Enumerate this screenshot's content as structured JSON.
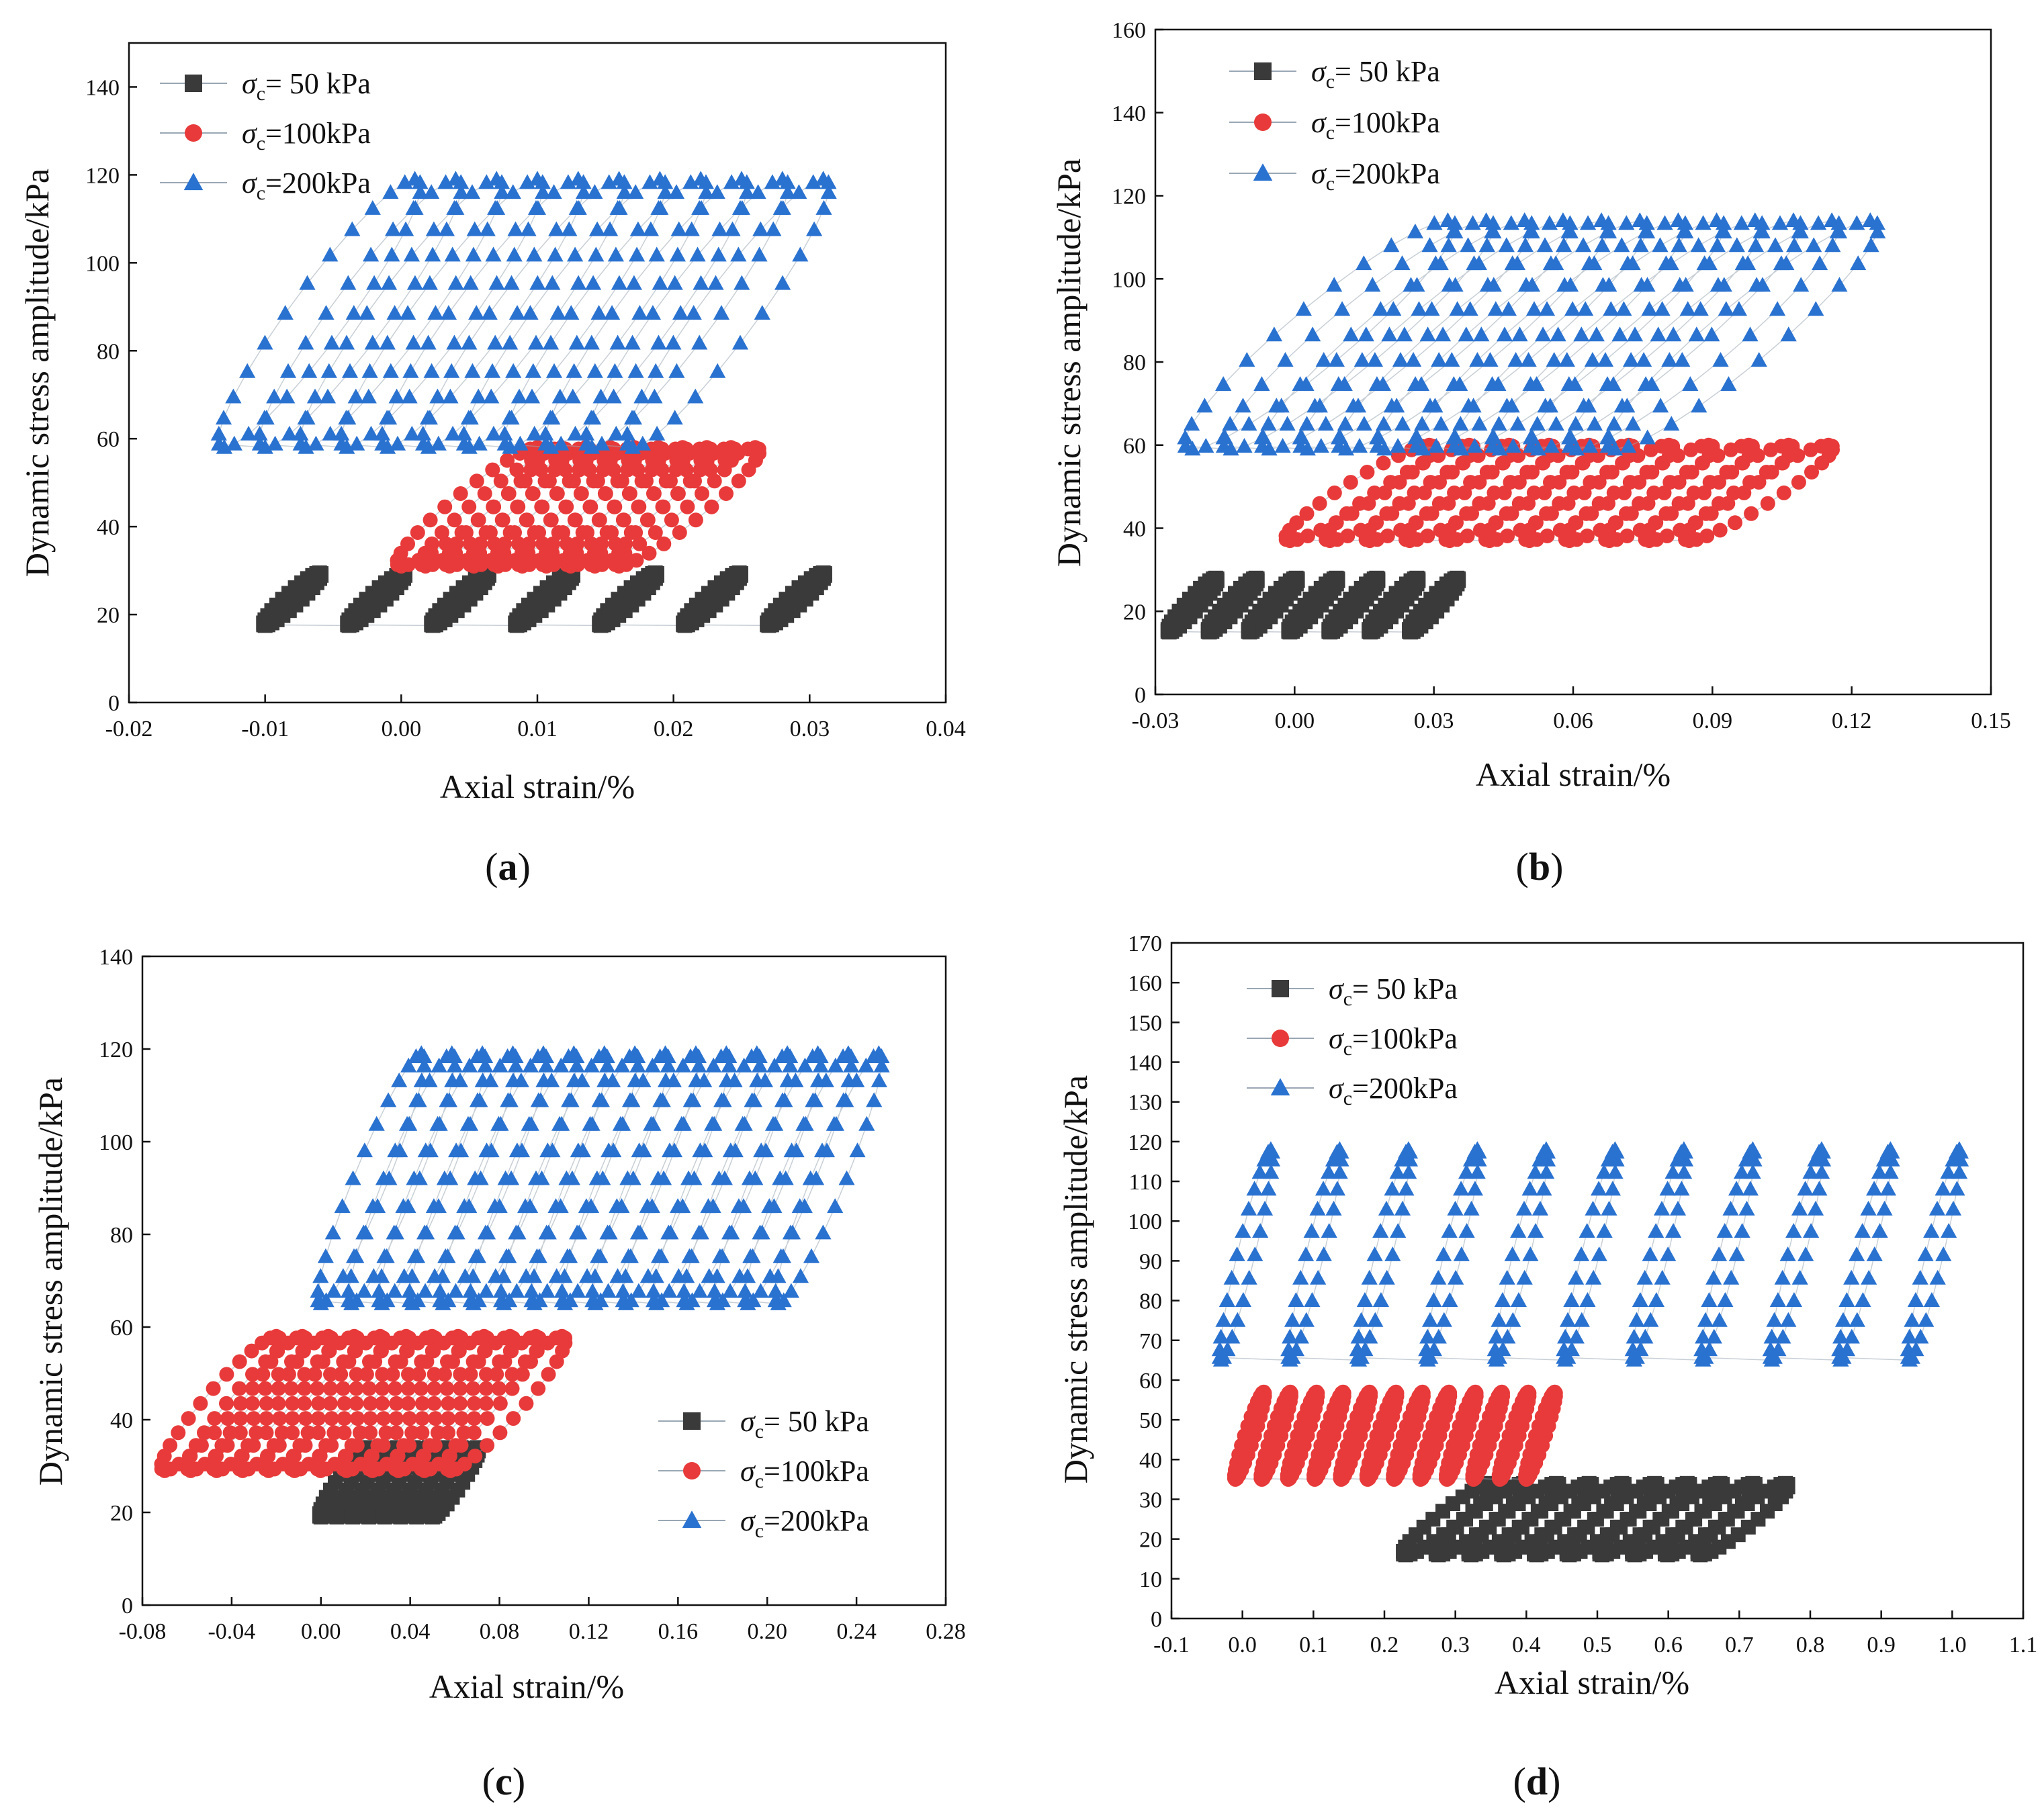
{
  "panels": [
    {
      "label": "(a)",
      "label_bold": "a",
      "chart_data": {
        "type": "scatter",
        "xlabel": "Axial strain/%",
        "ylabel": "Dynamic stress amplitude/kPa",
        "xlim": [
          -0.02,
          0.04
        ],
        "ylim": [
          0,
          150
        ],
        "xticks": [
          "-0.02",
          "-0.01",
          "0.00",
          "0.01",
          "0.02",
          "0.03",
          "0.04"
        ],
        "yticks": [
          "0",
          "20",
          "40",
          "60",
          "80",
          "100",
          "120",
          "140"
        ],
        "legend_position": "top-left",
        "series": [
          {
            "name": "σc= 50 kPa",
            "sym": "c",
            "sub": "c",
            "rest": "= 50 kPa",
            "marker": "square",
            "color": "#3a3a3a",
            "loops": [
              {
                "x0": -0.01,
                "x1": 0.031,
                "ymin": 17.5,
                "ymax": 29.5,
                "n": 7,
                "hshift": 0.004
              }
            ]
          },
          {
            "name": "σc=100kPa",
            "sym": "c",
            "sub": "c",
            "rest": "=100kPa",
            "marker": "circle",
            "color": "#e83a3a",
            "loops": [
              {
                "x0": 0.0,
                "x1": 0.026,
                "ymin": 31,
                "ymax": 58,
                "n": 10,
                "hshift": 0.01
              }
            ]
          },
          {
            "name": "σc=200kPa",
            "sym": "c",
            "sub": "c",
            "rest": "=200kPa",
            "marker": "triangle",
            "color": "#2a72d0",
            "loops": [
              {
                "x0": -0.013,
                "x1": 0.031,
                "ymin": 58,
                "ymax": 119,
                "n": 11,
                "hshift": 0.014
              }
            ]
          }
        ]
      }
    },
    {
      "label": "(b)",
      "label_bold": "b",
      "chart_data": {
        "type": "scatter",
        "xlabel": "Axial strain/%",
        "ylabel": "Dynamic stress amplitude/kPa",
        "xlim": [
          -0.03,
          0.15
        ],
        "ylim": [
          0,
          160
        ],
        "xticks": [
          "-0.03",
          "0.00",
          "0.03",
          "0.06",
          "0.09",
          "0.12",
          "0.15"
        ],
        "yticks": [
          "0",
          "20",
          "40",
          "60",
          "80",
          "100",
          "120",
          "140",
          "160"
        ],
        "legend_position": "top-left",
        "series": [
          {
            "name": "σc= 50 kPa",
            "sym": "c",
            "sub": "c",
            "rest": "= 50 kPa",
            "marker": "square",
            "color": "#3a3a3a",
            "loops": [
              {
                "x0": -0.027,
                "x1": 0.035,
                "ymin": 15,
                "ymax": 28,
                "n": 7,
                "hshift": 0.01
              }
            ]
          },
          {
            "name": "σc=100kPa",
            "sym": "c",
            "sub": "c",
            "rest": "=100kPa",
            "marker": "circle",
            "color": "#e83a3a",
            "loops": [
              {
                "x0": -0.001,
                "x1": 0.115,
                "ymin": 37,
                "ymax": 60,
                "n": 11,
                "hshift": 0.03
              }
            ]
          },
          {
            "name": "σc=200kPa",
            "sym": "c",
            "sub": "c",
            "rest": "=200kPa",
            "marker": "triangle",
            "color": "#2a72d0",
            "loops": [
              {
                "x0": -0.022,
                "x1": 0.124,
                "ymin": 59,
                "ymax": 114,
                "n": 12,
                "hshift": 0.055
              }
            ]
          }
        ]
      }
    },
    {
      "label": "(c)",
      "label_bold": "c",
      "chart_data": {
        "type": "scatter",
        "xlabel": "Axial strain/%",
        "ylabel": "Dynamic stress amplitude/kPa",
        "xlim": [
          -0.08,
          0.28
        ],
        "ylim": [
          0,
          140
        ],
        "xticks": [
          "-0.08",
          "-0.04",
          "0.00",
          "0.04",
          "0.08",
          "0.12",
          "0.16",
          "0.20",
          "0.24",
          "0.28"
        ],
        "yticks": [
          "0",
          "20",
          "40",
          "60",
          "80",
          "100",
          "120",
          "140"
        ],
        "legend_position": "bottom-right",
        "series": [
          {
            "name": "σc= 50 kPa",
            "sym": "c",
            "sub": "c",
            "rest": "= 50 kPa",
            "marker": "square",
            "color": "#3a3a3a",
            "loops": [
              {
                "x0": 0.0,
                "x1": 0.07,
                "ymin": 19,
                "ymax": 34,
                "n": 8,
                "hshift": 0.02
              }
            ]
          },
          {
            "name": "σc=100kPa",
            "sym": "c",
            "sub": "c",
            "rest": "=100kPa",
            "marker": "circle",
            "color": "#e83a3a",
            "loops": [
              {
                "x0": -0.07,
                "x1": 0.108,
                "ymin": 29,
                "ymax": 58,
                "n": 12,
                "hshift": 0.05
              }
            ]
          },
          {
            "name": "σc=200kPa",
            "sym": "c",
            "sub": "c",
            "rest": "=200kPa",
            "marker": "triangle",
            "color": "#2a72d0",
            "loops": [
              {
                "x0": 0.0,
                "x1": 0.25,
                "ymin": 65,
                "ymax": 119,
                "n": 16,
                "hshift": 0.045
              }
            ]
          }
        ]
      }
    },
    {
      "label": "(d)",
      "label_bold": "d",
      "chart_data": {
        "type": "scatter",
        "xlabel": "Axial strain/%",
        "ylabel": "Dynamic stress amplitude/kPa",
        "xlim": [
          -0.1,
          1.1
        ],
        "ylim": [
          0,
          170
        ],
        "xticks": [
          "-0.1",
          "0.0",
          "0.1",
          "0.2",
          "0.3",
          "0.4",
          "0.5",
          "0.6",
          "0.7",
          "0.8",
          "0.9",
          "1.0",
          "1.1"
        ],
        "yticks": [
          "0",
          "10",
          "20",
          "30",
          "40",
          "50",
          "60",
          "70",
          "80",
          "90",
          "100",
          "110",
          "120",
          "130",
          "140",
          "150",
          "160",
          "170"
        ],
        "legend_position": "top-left",
        "series": [
          {
            "name": "σc= 50 kPa",
            "sym": "c",
            "sub": "c",
            "rest": "= 50 kPa",
            "marker": "square",
            "color": "#3a3a3a",
            "loops": [
              {
                "x0": 0.23,
                "x1": 0.765,
                "ymin": 16,
                "ymax": 34,
                "n": 10,
                "hshift": 0.12
              }
            ]
          },
          {
            "name": "σc=100kPa",
            "sym": "c",
            "sub": "c",
            "rest": "=100kPa",
            "marker": "circle",
            "color": "#e83a3a",
            "loops": [
              {
                "x0": -0.01,
                "x1": 0.44,
                "ymin": 35,
                "ymax": 57,
                "n": 12,
                "hshift": 0.04
              }
            ]
          },
          {
            "name": "σc=200kPa",
            "sym": "c",
            "sub": "c",
            "rest": "=200kPa",
            "marker": "triangle",
            "color": "#2a72d0",
            "loops": [
              {
                "x0": -0.03,
                "x1": 1.01,
                "ymin": 65,
                "ymax": 118,
                "n": 11,
                "hshift": 0.07
              }
            ]
          }
        ]
      }
    }
  ]
}
